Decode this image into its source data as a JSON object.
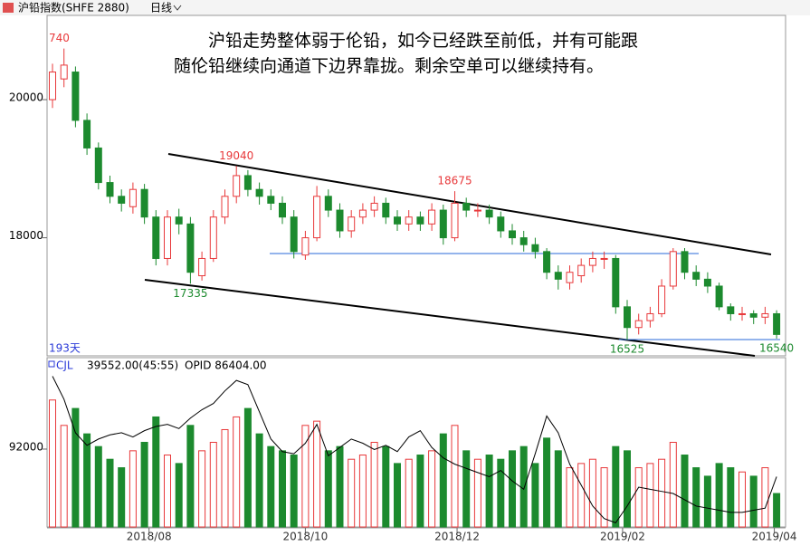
{
  "header": {
    "title": "沪铅指数(SHFE 2880)",
    "period": "日线"
  },
  "annotation": [
    "沪铅走势整体弱于伦铅，如今已经跌至前低，并有可能跟",
    "随伦铅继续向通道下边界靠拢。剩余空单可以继续持有。"
  ],
  "chart_data": [
    {
      "type": "candlestick",
      "ylim": [
        16290,
        21220
      ],
      "yticks": [
        20000,
        18000
      ],
      "xticks": [
        {
          "value": 8.4,
          "label": "2018/08"
        },
        {
          "value": 22,
          "label": "2018/10"
        },
        {
          "value": 35.2,
          "label": "2018/12"
        },
        {
          "value": 49.6,
          "label": "2019/02"
        },
        {
          "value": 62.8,
          "label": "2019/04"
        }
      ],
      "period_label": "193天",
      "price_labels": [
        {
          "value": 20740,
          "label": "740"
        },
        {
          "value": 19040,
          "label": "19040"
        },
        {
          "value": 18675,
          "label": "18675"
        },
        {
          "value": 17335,
          "label": "17335"
        },
        {
          "value": 16525,
          "label": "16525"
        },
        {
          "value": 16540,
          "label": "16540"
        }
      ],
      "up_color": "#e8383a",
      "down_color": "#1c8a2e",
      "open": [
        20000,
        20300,
        20400,
        19700,
        19300,
        18800,
        18600,
        18450,
        18700,
        18300,
        17700,
        18300,
        18200,
        17450,
        17700,
        18300,
        18600,
        18900,
        18700,
        18600,
        18500,
        18300,
        17750,
        18000,
        18600,
        18400,
        18100,
        18300,
        18400,
        18500,
        18300,
        18200,
        18300,
        18200,
        18400,
        18000,
        18500,
        18400,
        18400,
        18300,
        18100,
        18000,
        17900,
        17800,
        17500,
        17350,
        17450,
        17600,
        17700,
        17700,
        17000,
        16700,
        16800,
        16900,
        17300,
        17800,
        17500,
        17400,
        17300,
        17000,
        16900,
        16900,
        16850,
        16900
      ],
      "high": [
        20520,
        20740,
        20480,
        19800,
        19380,
        18900,
        18700,
        18800,
        18780,
        18400,
        18400,
        18420,
        18300,
        17800,
        18400,
        18700,
        19040,
        18980,
        18800,
        18700,
        18600,
        18400,
        18100,
        18750,
        18700,
        18500,
        18400,
        18500,
        18600,
        18580,
        18400,
        18400,
        18380,
        18500,
        18480,
        18675,
        18580,
        18500,
        18480,
        18380,
        18200,
        18100,
        18000,
        17850,
        17600,
        17600,
        17700,
        17800,
        17800,
        17750,
        17100,
        16900,
        17000,
        17400,
        17850,
        17850,
        17600,
        17500,
        17350,
        17050,
        17000,
        16950,
        17000,
        16950
      ],
      "low": [
        19880,
        20180,
        19600,
        19200,
        18700,
        18500,
        18380,
        18350,
        18200,
        17600,
        17600,
        18050,
        17335,
        17380,
        17650,
        18200,
        18500,
        18600,
        18480,
        18400,
        18200,
        17700,
        17680,
        17950,
        18300,
        18000,
        18000,
        18200,
        18300,
        18200,
        18100,
        18100,
        18100,
        18100,
        17900,
        17950,
        18300,
        18300,
        18200,
        18000,
        17900,
        17800,
        17700,
        17400,
        17250,
        17250,
        17350,
        17500,
        17550,
        16900,
        16525,
        16600,
        16700,
        16850,
        17250,
        17400,
        17300,
        17200,
        16950,
        16800,
        16800,
        16750,
        16750,
        16540
      ],
      "close": [
        20400,
        20500,
        19700,
        19300,
        18800,
        18600,
        18500,
        18700,
        18300,
        17700,
        18300,
        18200,
        17500,
        17700,
        18300,
        18600,
        18900,
        18700,
        18600,
        18500,
        18300,
        17800,
        18000,
        18600,
        18400,
        18100,
        18300,
        18400,
        18500,
        18300,
        18200,
        18300,
        18200,
        18400,
        18000,
        18500,
        18400,
        18400,
        18300,
        18100,
        18000,
        17900,
        17800,
        17500,
        17400,
        17500,
        17600,
        17700,
        17700,
        17000,
        16700,
        16800,
        16900,
        17300,
        17800,
        17500,
        17400,
        17300,
        17000,
        16900,
        16900,
        16850,
        16900,
        16600
      ]
    },
    {
      "type": "bar",
      "legend": [
        "CJL",
        "39552.00(45:55)",
        "OPID 86404.00"
      ],
      "ylim": [
        0,
        200000
      ],
      "yticks": [
        92000
      ],
      "y2lim": [
        84000,
        92000
      ],
      "series": [
        {
          "name": "CJL",
          "values": [
            150000,
            120000,
            140000,
            110000,
            95000,
            80000,
            70000,
            90000,
            100000,
            130000,
            85000,
            75000,
            120000,
            90000,
            100000,
            115000,
            130000,
            140000,
            110000,
            95000,
            90000,
            85000,
            120000,
            125000,
            90000,
            95000,
            80000,
            85000,
            100000,
            95000,
            75000,
            80000,
            85000,
            90000,
            110000,
            120000,
            90000,
            80000,
            85000,
            80000,
            90000,
            95000,
            75000,
            105000,
            90000,
            70000,
            75000,
            80000,
            70000,
            95000,
            90000,
            70000,
            75000,
            80000,
            100000,
            85000,
            70000,
            60000,
            75000,
            70000,
            65000,
            60000,
            70000,
            39552
          ]
        },
        {
          "name": "OPID",
          "axis": "y2",
          "color": "#000000",
          "values": [
            91200,
            90100,
            88500,
            87900,
            88200,
            88400,
            88500,
            88300,
            88600,
            88800,
            88900,
            88700,
            89200,
            89600,
            89900,
            90500,
            91000,
            90800,
            89500,
            88200,
            87600,
            87500,
            88000,
            88900,
            87400,
            87800,
            88200,
            88000,
            87700,
            87900,
            87600,
            88300,
            88600,
            87800,
            87300,
            87000,
            86800,
            86600,
            86400,
            86700,
            86200,
            85800,
            87500,
            89300,
            88500,
            87000,
            86000,
            85000,
            84400,
            84200,
            85000,
            85900,
            85800,
            85700,
            85600,
            85300,
            85000,
            84900,
            84800,
            84700,
            84700,
            84800,
            84900,
            86404
          ]
        }
      ]
    }
  ]
}
